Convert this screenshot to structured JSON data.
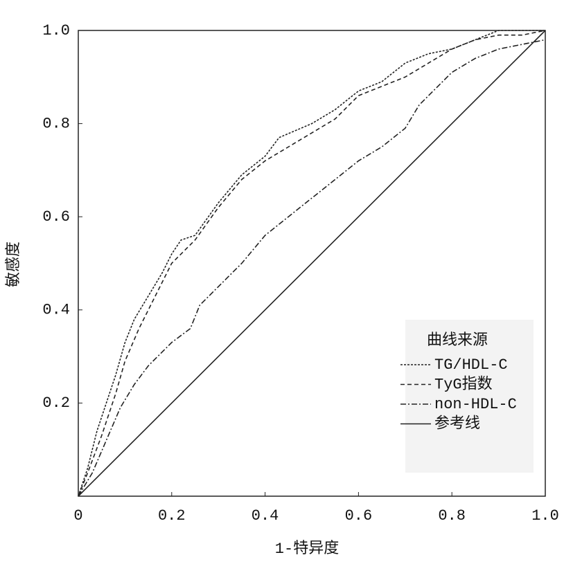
{
  "chart_data": {
    "type": "line",
    "x_label": "1-特异度",
    "y_label": "敏感度",
    "xlim": [
      0,
      1
    ],
    "ylim": [
      0,
      1
    ],
    "xticks": [
      0,
      0.2,
      0.4,
      0.6,
      0.8,
      {
        "value": 1,
        "label": "1.0"
      }
    ],
    "yticks": [
      0.2,
      0.4,
      0.6,
      0.8,
      {
        "value": 1,
        "label": "1.0"
      }
    ],
    "legend_title": "曲线来源",
    "legend_position": "lower right",
    "series": [
      {
        "name": "TG/HDL-C",
        "color": "#222222",
        "dash": "3,2",
        "x": [
          0,
          0.02,
          0.04,
          0.06,
          0.08,
          0.1,
          0.12,
          0.15,
          0.18,
          0.2,
          0.22,
          0.25,
          0.3,
          0.35,
          0.4,
          0.43,
          0.5,
          0.55,
          0.6,
          0.65,
          0.7,
          0.75,
          0.8,
          0.85,
          0.9,
          1
        ],
        "values": [
          0,
          0.06,
          0.14,
          0.2,
          0.26,
          0.33,
          0.38,
          0.43,
          0.48,
          0.52,
          0.55,
          0.56,
          0.63,
          0.69,
          0.73,
          0.77,
          0.8,
          0.83,
          0.87,
          0.89,
          0.93,
          0.95,
          0.96,
          0.98,
          1,
          1
        ]
      },
      {
        "name": "TyG指数",
        "color": "#222222",
        "dash": "6,4",
        "x": [
          0,
          0.02,
          0.05,
          0.08,
          0.1,
          0.13,
          0.16,
          0.2,
          0.25,
          0.3,
          0.35,
          0.4,
          0.45,
          0.5,
          0.55,
          0.6,
          0.65,
          0.7,
          0.75,
          0.8,
          0.85,
          0.9,
          0.95,
          1
        ],
        "values": [
          0,
          0.05,
          0.13,
          0.22,
          0.29,
          0.36,
          0.42,
          0.5,
          0.55,
          0.62,
          0.68,
          0.72,
          0.75,
          0.78,
          0.81,
          0.86,
          0.88,
          0.9,
          0.93,
          0.96,
          0.98,
          0.99,
          0.99,
          1
        ]
      },
      {
        "name": "non-HDL-C",
        "color": "#222222",
        "dash": "8,3,2,3",
        "x": [
          0,
          0.03,
          0.06,
          0.09,
          0.12,
          0.15,
          0.2,
          0.24,
          0.26,
          0.3,
          0.35,
          0.4,
          0.45,
          0.5,
          0.55,
          0.6,
          0.65,
          0.7,
          0.73,
          0.77,
          0.8,
          0.85,
          0.9,
          0.95,
          1
        ],
        "values": [
          0,
          0.05,
          0.12,
          0.19,
          0.24,
          0.28,
          0.33,
          0.36,
          0.41,
          0.45,
          0.5,
          0.56,
          0.6,
          0.64,
          0.68,
          0.72,
          0.75,
          0.79,
          0.84,
          0.88,
          0.91,
          0.94,
          0.96,
          0.97,
          0.98
        ]
      },
      {
        "name": "参考线",
        "color": "#222222",
        "dash": "none",
        "x": [
          0,
          1
        ],
        "values": [
          0,
          1
        ]
      }
    ]
  }
}
